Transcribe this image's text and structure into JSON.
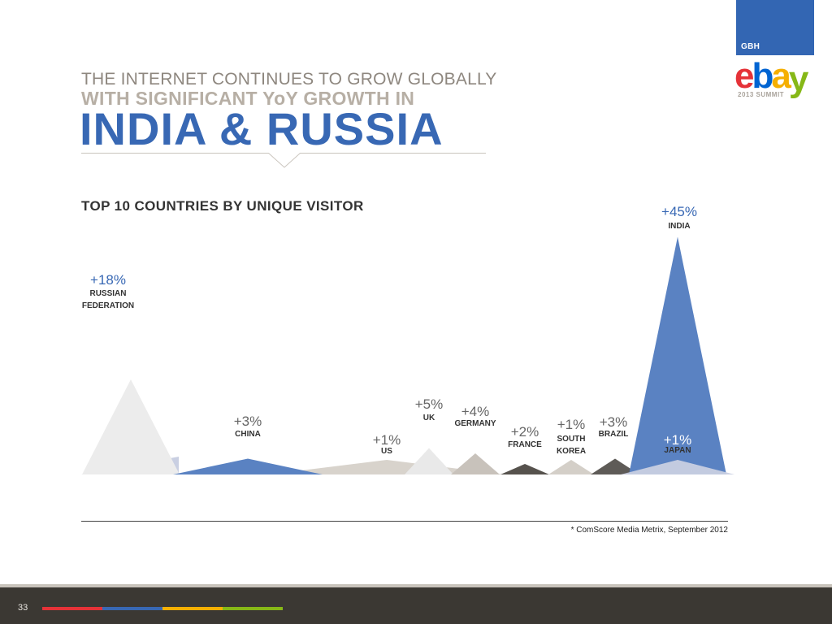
{
  "header": {
    "division": "GBH",
    "logo_letters": [
      {
        "char": "e",
        "color": "#e53238"
      },
      {
        "char": "b",
        "color": "#0064d2"
      },
      {
        "char": "a",
        "color": "#f5af02"
      },
      {
        "char": "y",
        "color": "#86b817"
      }
    ],
    "logo_subtitle": "2013 SUMMIT",
    "title_line1": "THE INTERNET CONTINUES TO GROW GLOBALLY",
    "title_line2": "WITH SIGNIFICANT YoY GROWTH IN",
    "title_line3": "INDIA & RUSSIA"
  },
  "chart_data": {
    "type": "area",
    "title": "TOP 10 COUNTRIES BY UNIQUE VISITOR",
    "value_unit": "% YoY growth",
    "series": [
      {
        "name": "RUSSIAN FEDERATION",
        "label_lines": [
          "RUSSIAN",
          "FEDERATION"
        ],
        "label": "+18%",
        "value": 18,
        "color": "#ececec",
        "label_color": "#3868b4"
      },
      {
        "name": "CHINA",
        "label_lines": [
          "CHINA"
        ],
        "label": "+3%",
        "value": 3,
        "color": "#5a82c2",
        "label_color": "#666666"
      },
      {
        "name": "US",
        "label_lines": [
          "US"
        ],
        "label": "+1%",
        "value": 1,
        "color": "#d8d3cc",
        "label_color": "#666666"
      },
      {
        "name": "UK",
        "label_lines": [
          "UK"
        ],
        "label": "+5%",
        "value": 5,
        "color": "#e9e9e9",
        "label_color": "#666666"
      },
      {
        "name": "GERMANY",
        "label_lines": [
          "GERMANY"
        ],
        "label": "+4%",
        "value": 4,
        "color": "#c8c2bb",
        "label_color": "#666666"
      },
      {
        "name": "FRANCE",
        "label_lines": [
          "FRANCE"
        ],
        "label": "+2%",
        "value": 2,
        "color": "#56524d",
        "label_color": "#666666"
      },
      {
        "name": "SOUTH KOREA",
        "label_lines": [
          "SOUTH",
          "KOREA"
        ],
        "label": "+1%",
        "value": 1,
        "color": "#d4cfc8",
        "label_color": "#666666"
      },
      {
        "name": "BRAZIL",
        "label_lines": [
          "BRAZIL"
        ],
        "label": "+3%",
        "value": 3,
        "color": "#5e5b57",
        "label_color": "#666666"
      },
      {
        "name": "INDIA",
        "label_lines": [
          "INDIA"
        ],
        "label": "+45%",
        "value": 45,
        "color": "#5a82c2",
        "label_color": "#3868b4"
      },
      {
        "name": "JAPAN",
        "label_lines": [
          "JAPAN"
        ],
        "label": "+1%",
        "value": 1,
        "color": "#c9cfe2",
        "label_color": "#ffffff"
      }
    ],
    "footnote": "* ComScore Media Metrix, September 2012"
  },
  "footer": {
    "page_number": "33",
    "stripe_colors": [
      "#e53238",
      "#3868b4",
      "#f5af02",
      "#86b817"
    ]
  }
}
